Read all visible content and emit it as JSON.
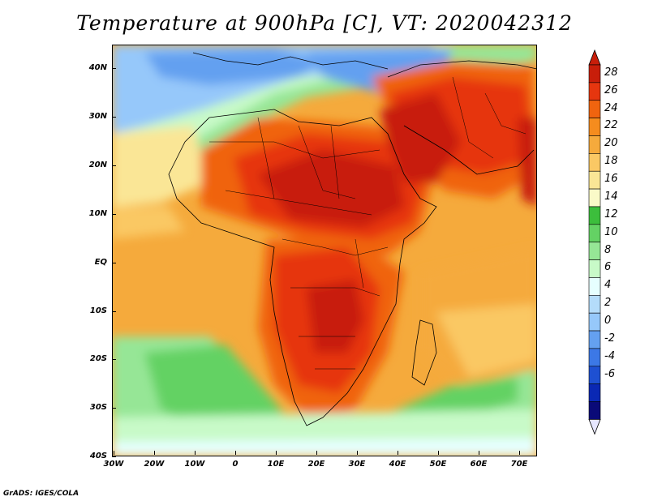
{
  "title": "Temperature at 900hPa [C], VT: 2020042312",
  "credit": "GrADS: IGES/COLA",
  "lat_labels": [
    "40N",
    "30N",
    "20N",
    "10N",
    "EQ",
    "10S",
    "20S",
    "30S",
    "40S"
  ],
  "lon_labels": [
    "30W",
    "20W",
    "10W",
    "0",
    "10E",
    "20E",
    "30E",
    "40E",
    "50E",
    "60E",
    "70E"
  ],
  "colorbar": {
    "labels": [
      "28",
      "26",
      "24",
      "22",
      "20",
      "18",
      "16",
      "14",
      "12",
      "10",
      "8",
      "6",
      "4",
      "2",
      "0",
      "-2",
      "-4",
      "-6"
    ],
    "colors": [
      "#c81e0a",
      "#e6360f",
      "#f0640f",
      "#f58c1e",
      "#f5aa3c",
      "#fac864",
      "#fae696",
      "#fafac8",
      "#3cbe3c",
      "#64d264",
      "#96e696",
      "#c8fac8",
      "#e6ffff",
      "#b4dcfa",
      "#96c8fa",
      "#64a0f0",
      "#3c78e6",
      "#1e50d2",
      "#0a28b4",
      "#0a0a78"
    ],
    "top_cap_color": "#c81e0a",
    "bottom_cap_color": "#e6e6ff"
  },
  "map": {
    "lon_range": [
      -30,
      75
    ],
    "lat_range": [
      -40,
      45
    ]
  }
}
